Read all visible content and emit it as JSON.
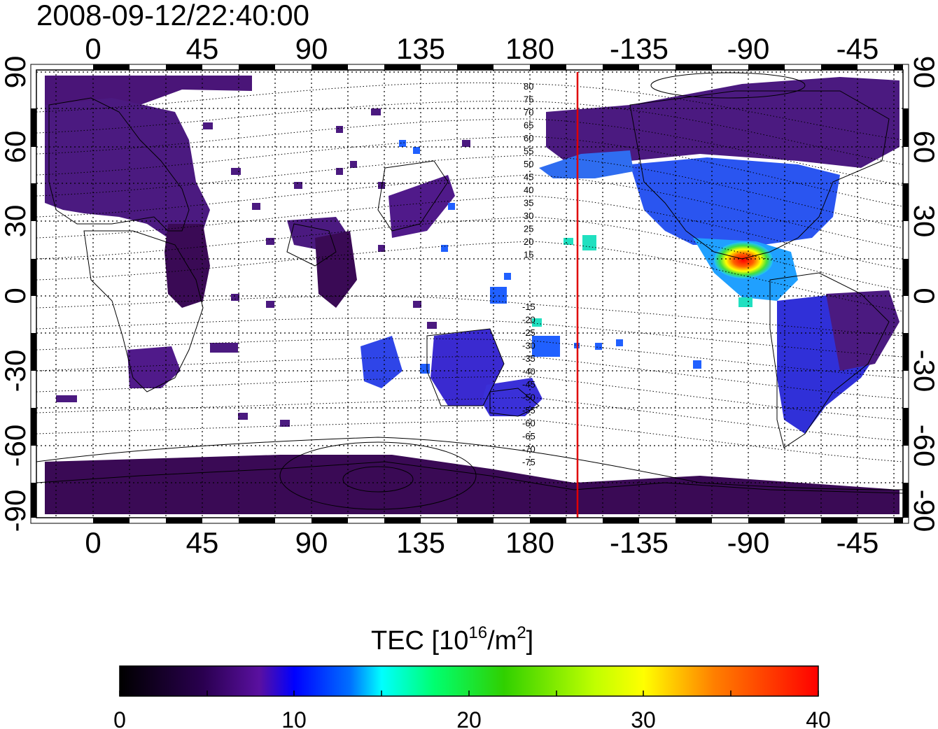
{
  "title": "2008-09-12/22:40:00",
  "map": {
    "lon_ticks": [
      "0",
      "45",
      "90",
      "135",
      "180",
      "-135",
      "-90",
      "-45"
    ],
    "lat_ticks": [
      "90",
      "60",
      "30",
      "0",
      "-30",
      "-60",
      "-90"
    ],
    "contour_labels_north": [
      "80",
      "75",
      "70",
      "65",
      "60",
      "55",
      "50",
      "45",
      "40",
      "35",
      "30",
      "25",
      "20",
      "15"
    ],
    "contour_labels_south": [
      "-15",
      "-20",
      "-25",
      "-30",
      "-35",
      "-40",
      "-45",
      "-50",
      "-55",
      "-60",
      "-65",
      "-70",
      "-75"
    ],
    "terminator_color": "#e00000"
  },
  "colorbar": {
    "label_main": "TEC  [10",
    "label_sup": "16",
    "label_unit": "/m",
    "label_sup2": "2",
    "label_end": "]",
    "ticks": [
      "0",
      "10",
      "20",
      "30",
      "40"
    ],
    "range": [
      0,
      40
    ],
    "stops": [
      "#000000",
      "#3a0060",
      "#5a10a0",
      "#0000ff",
      "#00a0ff",
      "#00ffff",
      "#00ff60",
      "#20d000",
      "#c0ff00",
      "#ffff00",
      "#ff8000",
      "#ff0000"
    ]
  }
}
